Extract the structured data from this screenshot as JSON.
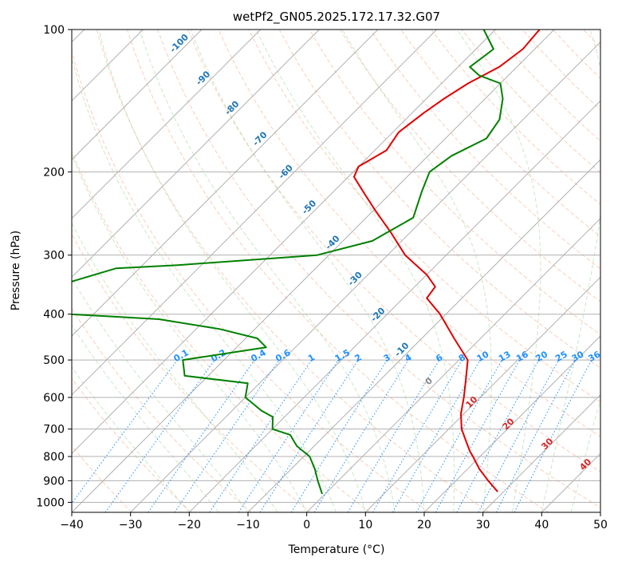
{
  "chart_data": {
    "type": "line",
    "title": "wetPf2_GN05.2025.172.17.32.G07",
    "xlabel": "Temperature (°C)",
    "ylabel": "Pressure (hPa)",
    "xlim": [
      -40,
      50
    ],
    "ylim": [
      1050,
      100
    ],
    "y_scale": "log",
    "grid": true,
    "x_ticks": [
      "−40",
      "−30",
      "−20",
      "−10",
      "0",
      "10",
      "20",
      "30",
      "40",
      "50"
    ],
    "y_ticks": [
      "100",
      "200",
      "300",
      "400",
      "500",
      "600",
      "700",
      "800",
      "900",
      "1000"
    ],
    "skew_t": true,
    "series": [
      {
        "color": "#e00000",
        "p": [
          950,
          900,
          850,
          800,
          780,
          750,
          700,
          650,
          600,
          550,
          500,
          450,
          400,
          370,
          350,
          330,
          300,
          270,
          240,
          220,
          205,
          195,
          180,
          165,
          150,
          140,
          130,
          120,
          110,
          100
        ],
        "t": [
          29,
          25.5,
          22,
          18.8,
          17.4,
          15.5,
          12.2,
          9.5,
          7.2,
          4.5,
          1.5,
          -4.5,
          -11,
          -16,
          -16.5,
          -20,
          -27,
          -33,
          -40,
          -45,
          -49,
          -50,
          -48,
          -49,
          -48,
          -47,
          -45.5,
          -43,
          -42,
          -42.5
        ]
      },
      {
        "color": "#008000",
        "p": [
          960,
          900,
          850,
          800,
          760,
          720,
          700,
          660,
          640,
          600,
          560,
          540,
          500,
          470,
          450,
          430,
          410,
          400,
          380,
          360,
          340,
          320,
          315,
          300,
          280,
          250,
          220,
          200,
          185,
          170,
          155,
          140,
          130,
          125,
          120,
          110,
          100
        ],
        "t": [
          -0.5,
          -3.5,
          -6,
          -9,
          -13,
          -16,
          -20,
          -22,
          -25,
          -30,
          -32,
          -44,
          -47,
          -35,
          -38,
          -46,
          -58,
          -74,
          -80,
          -83,
          -79,
          -74,
          -64,
          -42,
          -35,
          -32,
          -35,
          -37,
          -36,
          -33,
          -34,
          -37,
          -40,
          -45,
          -48,
          -47,
          -52
        ]
      }
    ],
    "dry_adiabat_labels": [
      "-100",
      "-90",
      "-80",
      "-70",
      "-60",
      "-50",
      "-40",
      "-30",
      "-20",
      "-10",
      "0"
    ],
    "mixing_ratio_labels": [
      "0.1",
      "0.2",
      "0.4",
      "0.6",
      "1",
      "1.5",
      "2",
      "3",
      "4",
      "6",
      "8",
      "10",
      "13",
      "16",
      "20",
      "25",
      "30",
      "36"
    ],
    "moist_adiabat_labels": [
      "10",
      "20",
      "30",
      "40"
    ],
    "colors": {
      "temperature": "#e00000",
      "dewpoint": "#008000",
      "dry_adiabat_label": "#1f77b4",
      "mixing_ratio": "#1e90ff",
      "moist_adiabat_label": "#d62728",
      "grid": "#b0b0b0"
    }
  }
}
